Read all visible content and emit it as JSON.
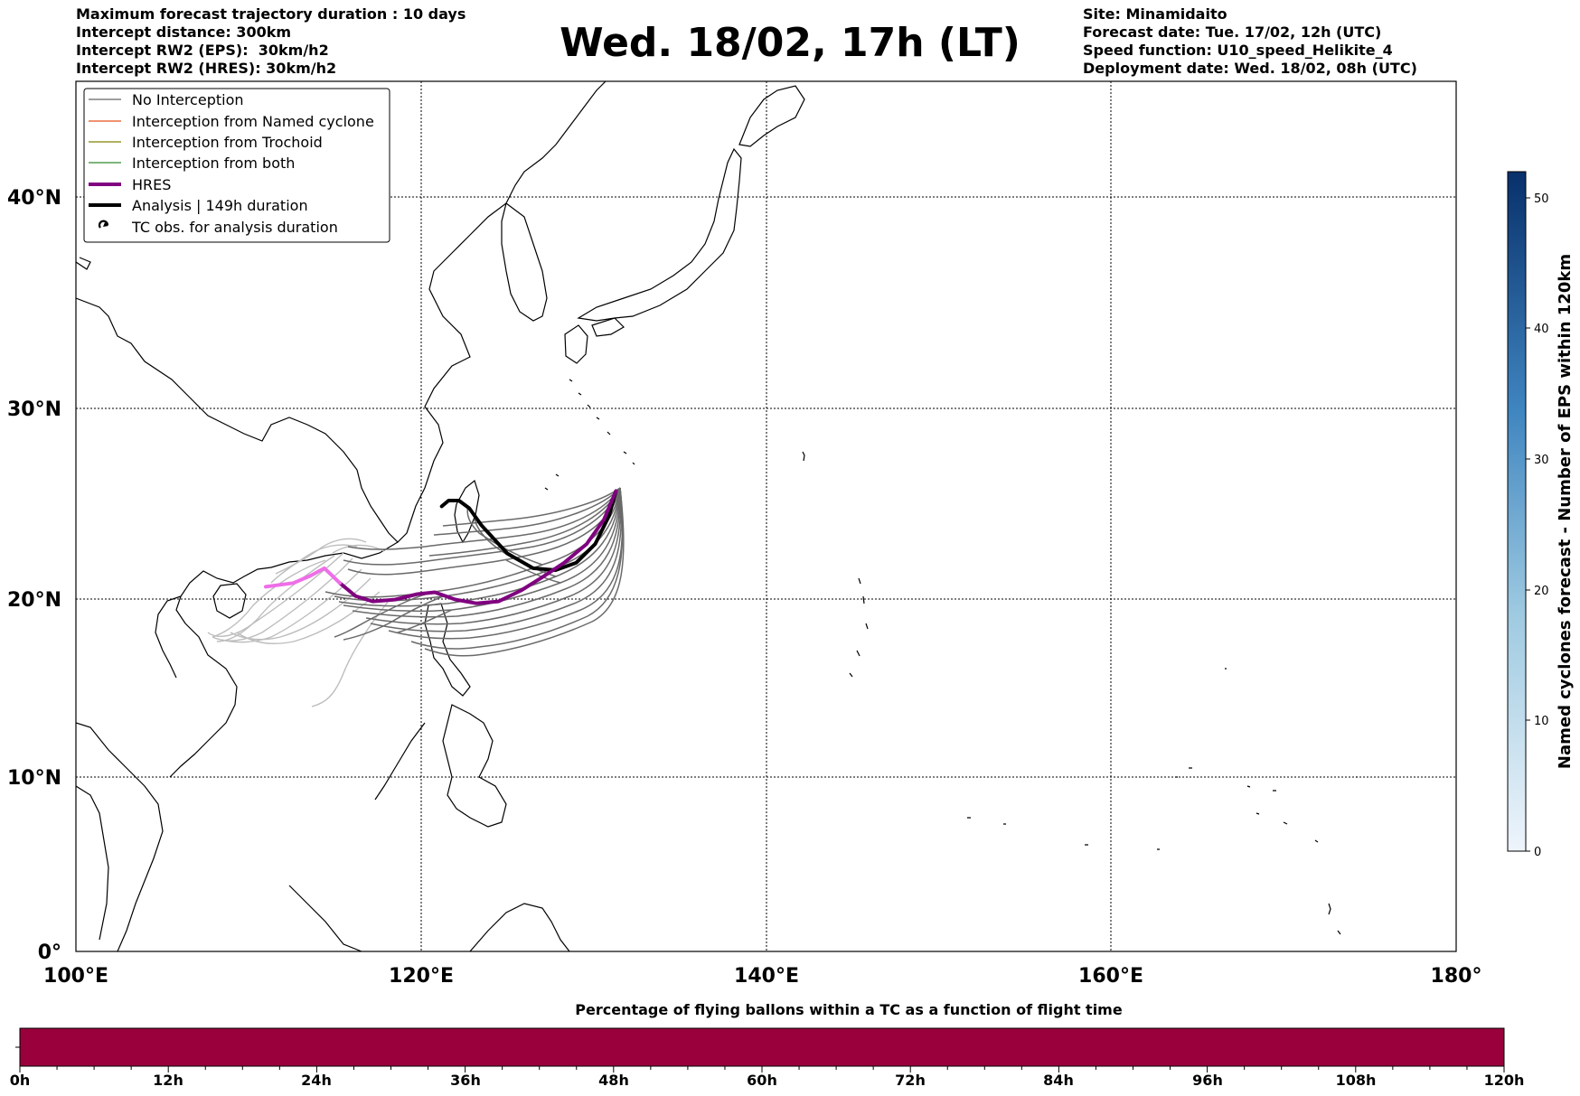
{
  "title": "Wed. 18/02, 17h (LT)",
  "header_left": [
    "Maximum forecast trajectory duration : 10 days",
    "Intercept distance: 300km",
    "Intercept RW2 (EPS):  30km/h2",
    "Intercept RW2 (HRES): 30km/h2"
  ],
  "header_right": [
    "Site: Minamidaito",
    "Forecast date: Tue. 17/02, 12h (UTC)",
    "Speed function: U10_speed_Helikite_4",
    "Deployment date: Wed. 18/02, 08h (UTC)"
  ],
  "map": {
    "lon_range": [
      100,
      180
    ],
    "lat_range": [
      0,
      45
    ],
    "lon_ticks": [
      "100°E",
      "120°E",
      "140°E",
      "160°E",
      "180°"
    ],
    "lat_ticks": [
      "0°",
      "10°N",
      "20°N",
      "30°N",
      "40°N"
    ]
  },
  "legend": [
    {
      "label": "No Interception",
      "color": "#666666",
      "kind": "thin"
    },
    {
      "label": "Interception from Named cyclone",
      "color": "#e8501c",
      "kind": "thin"
    },
    {
      "label": "Interception from Trochoid",
      "color": "#808000",
      "kind": "thin"
    },
    {
      "label": "Interception from both",
      "color": "#2e8b2e",
      "kind": "thin"
    },
    {
      "label": "HRES",
      "color": "#800080",
      "kind": "thick"
    },
    {
      "label": "Analysis | 149h duration",
      "color": "#000000",
      "kind": "thick"
    },
    {
      "label": "TC obs. for analysis duration",
      "color": "#000000",
      "kind": "symbol"
    }
  ],
  "colorbar": {
    "label": "Named cyclones forecast - Number of EPS within 120km",
    "ticks": [
      "0",
      "10",
      "20",
      "30",
      "40",
      "50"
    ],
    "max": 52,
    "colors": [
      "#eef4fb",
      "#08306b"
    ]
  },
  "flight_time_bar": {
    "title": "Percentage of flying ballons within a TC as a function of flight time",
    "ticks": [
      "0h",
      "12h",
      "24h",
      "36h",
      "48h",
      "60h",
      "72h",
      "84h",
      "96h",
      "108h",
      "120h"
    ],
    "color": "#99003c"
  },
  "trajectories": {
    "hres": [
      [
        131.3,
        25.8
      ],
      [
        130.6,
        24.3
      ],
      [
        129.6,
        23.0
      ],
      [
        128.3,
        22.0
      ],
      [
        127.0,
        21.2
      ],
      [
        125.8,
        20.5
      ],
      [
        124.5,
        19.9
      ],
      [
        123.2,
        19.8
      ],
      [
        122.0,
        20.0
      ],
      [
        120.8,
        20.4
      ],
      [
        119.8,
        20.3
      ],
      [
        118.5,
        20.0
      ],
      [
        117.2,
        19.9
      ],
      [
        116.2,
        20.2
      ],
      [
        115.3,
        20.9
      ],
      [
        114.4,
        21.7
      ],
      [
        113.6,
        21.3
      ],
      [
        112.6,
        20.9
      ],
      [
        111.8,
        20.8
      ],
      [
        111.0,
        20.7
      ]
    ],
    "analysis": [
      [
        131.3,
        25.8
      ],
      [
        130.9,
        24.5
      ],
      [
        130.1,
        23.0
      ],
      [
        129.0,
        22.0
      ],
      [
        127.8,
        21.6
      ],
      [
        126.5,
        21.7
      ],
      [
        125.0,
        22.5
      ],
      [
        123.5,
        24.0
      ],
      [
        122.8,
        24.9
      ],
      [
        122.2,
        25.3
      ],
      [
        121.6,
        25.3
      ],
      [
        121.2,
        25.0
      ]
    ]
  }
}
